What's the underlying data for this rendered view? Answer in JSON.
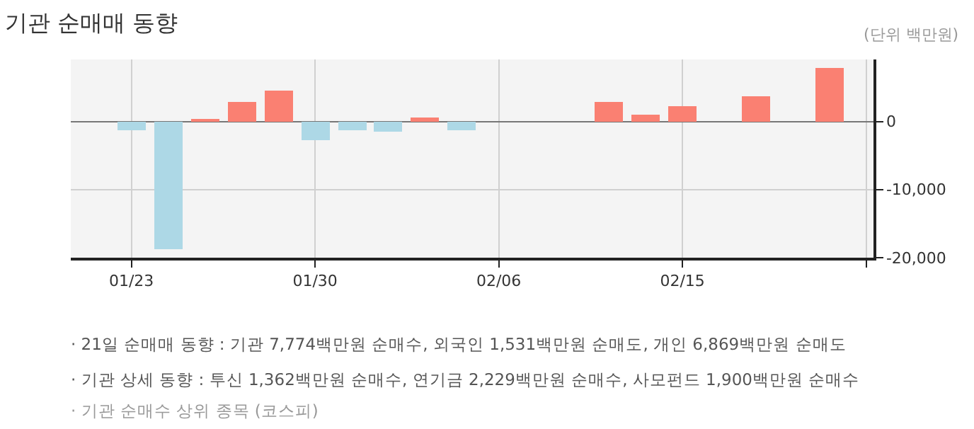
{
  "chart_data": {
    "type": "bar",
    "title": "기관 순매매 동향",
    "subtitle": "(단위 백만원)",
    "categories": [
      "01/23",
      null,
      null,
      null,
      null,
      "01/30",
      null,
      null,
      null,
      null,
      "02/06",
      null,
      null,
      null,
      null,
      "02/15",
      null,
      null,
      null,
      null,
      null
    ],
    "values": [
      -1200,
      -18800,
      300,
      2850,
      4450,
      -2850,
      -1300,
      -1500,
      650,
      -1200,
      null,
      null,
      null,
      2850,
      950,
      2300,
      null,
      3600,
      null,
      7774,
      null
    ],
    "colors": [
      "#add8e6",
      "#add8e6",
      "#fa8072",
      "#fa8072",
      "#fa8072",
      "#add8e6",
      "#add8e6",
      "#add8e6",
      "#fa8072",
      "#add8e6",
      null,
      null,
      null,
      "#fa8072",
      "#fa8072",
      "#fa8072",
      null,
      "#fa8072",
      null,
      "#fa8072",
      null
    ],
    "ylim": [
      -20000,
      9100
    ],
    "yticks": [
      {
        "value": 0,
        "label": "0"
      },
      {
        "value": -10000,
        "label": "-10,000"
      },
      {
        "value": -20000,
        "label": "-20,000"
      }
    ],
    "grid": true,
    "annotations": [
      "· 21일 순매매 동향 : 기관 7,774백만원 순매수, 외국인 1,531백만원 순매도, 개인 6,869백만원 순매도",
      "· 기관 상세 동향 : 투신 1,362백만원 순매수, 연기금 2,229백만원 순매수, 사모펀드 1,900백만원 순매수",
      "· 기관 순매수 상위 종목 (코스피)"
    ]
  }
}
